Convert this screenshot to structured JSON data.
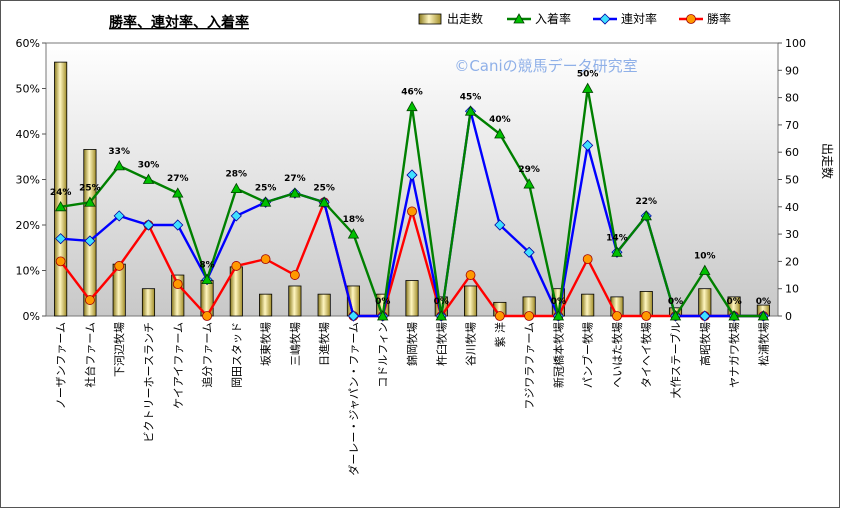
{
  "chart_data": {
    "type": "bar+line",
    "title": "勝率、連対率、入着率",
    "watermark": "©Caniの競馬データ研究室",
    "y2label": "出走数",
    "ylim": [
      0,
      60
    ],
    "y2lim": [
      0,
      100
    ],
    "yticks": [
      "0%",
      "10%",
      "20%",
      "30%",
      "40%",
      "50%",
      "60%"
    ],
    "y2ticks": [
      "0",
      "10",
      "20",
      "30",
      "40",
      "50",
      "60",
      "70",
      "80",
      "90",
      "100"
    ],
    "categories": [
      "ノーザンファーム",
      "社台ファーム",
      "下河辺牧場",
      "ビクトリーホースランチ",
      "ケイアイファーム",
      "追分ファーム",
      "岡田スタッド",
      "坂東牧場",
      "三嶋牧場",
      "日進牧場",
      "ダーレー・ジャパン・ファーム",
      "コドルフィン",
      "錦岡牧場",
      "杵臼牧場",
      "谷川牧場",
      "紫 洋",
      "フジワラファーム",
      "新冠橋本牧場",
      "パンブー牧場",
      "へいはた牧場",
      "タイヘイ牧場",
      "大作ステーブル",
      "高昭牧場",
      "ヤナガワ牧場",
      "松浦牧場"
    ],
    "series": [
      {
        "name": "出走数",
        "kind": "bar",
        "axis": "right",
        "color": "#e8dc8a",
        "values": [
          93,
          61,
          19,
          10,
          15,
          13,
          18,
          8,
          11,
          8,
          11,
          8,
          13,
          7,
          11,
          5,
          7,
          10,
          8,
          7,
          9,
          3,
          10,
          7,
          4
        ]
      },
      {
        "name": "入着率",
        "kind": "line",
        "axis": "left",
        "color": "#008000",
        "marker": "triangle",
        "values": [
          24,
          25,
          33,
          30,
          27,
          8,
          28,
          25,
          27,
          25,
          18,
          0,
          46,
          0,
          45,
          40,
          29,
          0,
          50,
          14,
          22,
          0,
          10,
          0,
          0
        ]
      },
      {
        "name": "連対率",
        "kind": "line",
        "axis": "left",
        "color": "#0000ff",
        "marker": "diamond",
        "values": [
          17,
          16.5,
          22,
          20,
          20,
          8,
          22,
          25,
          27,
          25,
          0,
          0,
          31,
          0,
          45,
          20,
          14,
          0,
          37.5,
          14,
          22,
          0,
          0,
          0,
          0
        ]
      },
      {
        "name": "勝率",
        "kind": "line",
        "axis": "left",
        "color": "#ff0000",
        "marker": "circle",
        "values": [
          12,
          3.5,
          11,
          20,
          7,
          0,
          11,
          12.5,
          9,
          25,
          0,
          0,
          23,
          0,
          9,
          0,
          0,
          0,
          12.5,
          0,
          0,
          0,
          0,
          0,
          0
        ]
      }
    ],
    "data_labels": [
      {
        "i": 0,
        "text": "24%"
      },
      {
        "i": 1,
        "text": "25%"
      },
      {
        "i": 2,
        "text": "33%"
      },
      {
        "i": 3,
        "text": "30%"
      },
      {
        "i": 4,
        "text": "27%"
      },
      {
        "i": 5,
        "text": "8%"
      },
      {
        "i": 6,
        "text": "28%"
      },
      {
        "i": 7,
        "text": "25%"
      },
      {
        "i": 8,
        "text": "27%"
      },
      {
        "i": 9,
        "text": "25%"
      },
      {
        "i": 10,
        "text": "18%"
      },
      {
        "i": 11,
        "text": "0%"
      },
      {
        "i": 12,
        "text": "46%"
      },
      {
        "i": 13,
        "text": "0%"
      },
      {
        "i": 14,
        "text": "45%"
      },
      {
        "i": 15,
        "text": "40%"
      },
      {
        "i": 16,
        "text": "29%"
      },
      {
        "i": 17,
        "text": "0%"
      },
      {
        "i": 18,
        "text": "50%"
      },
      {
        "i": 19,
        "text": "14%"
      },
      {
        "i": 20,
        "text": "22%"
      },
      {
        "i": 21,
        "text": "0%"
      },
      {
        "i": 22,
        "text": "10%"
      },
      {
        "i": 23,
        "text": "0%"
      },
      {
        "i": 24,
        "text": "0%"
      }
    ],
    "legend": [
      {
        "label": "出走数",
        "key": "bar"
      },
      {
        "label": "入着率",
        "key": "green"
      },
      {
        "label": "連対率",
        "key": "blue"
      },
      {
        "label": "勝率",
        "key": "red"
      }
    ],
    "legend_position": "top",
    "grid": false
  }
}
